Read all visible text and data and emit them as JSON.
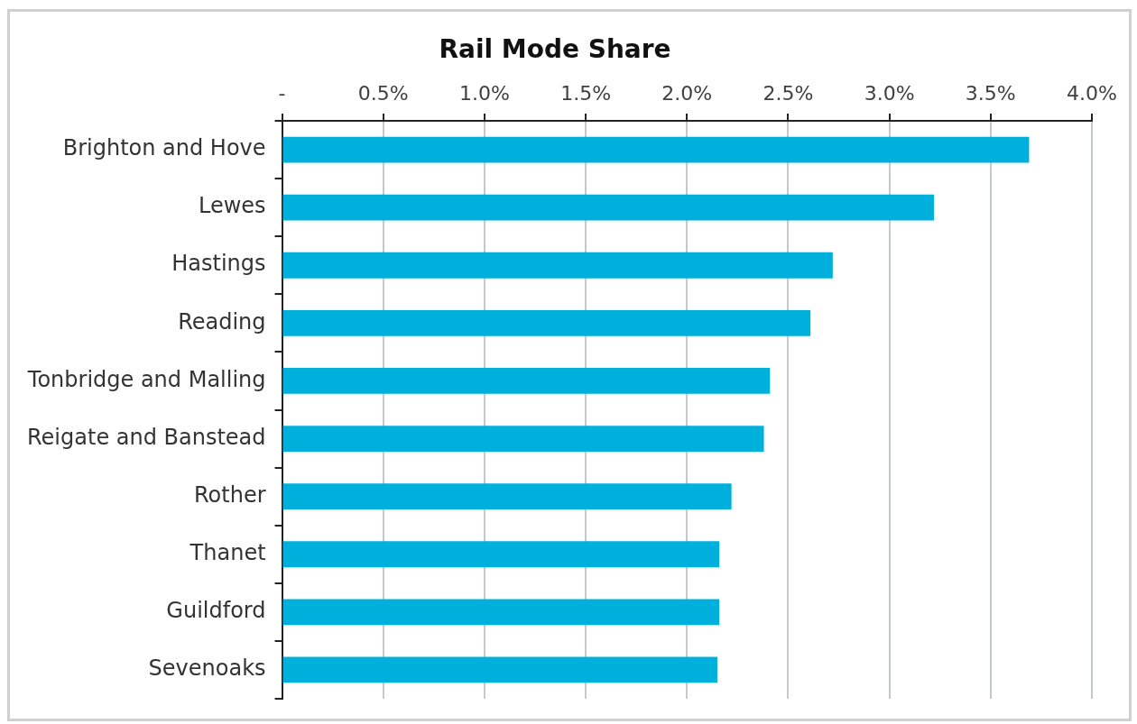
{
  "chart_data": {
    "type": "bar",
    "orientation": "horizontal",
    "title": "Rail Mode Share",
    "categories": [
      "Brighton and Hove",
      "Lewes",
      "Hastings",
      "Reading",
      "Tonbridge and Malling",
      "Reigate and Banstead",
      "Rother",
      "Thanet",
      "Guildford",
      "Sevenoaks"
    ],
    "values": [
      3.69,
      3.22,
      2.72,
      2.61,
      2.41,
      2.38,
      2.22,
      2.16,
      2.16,
      2.15
    ],
    "color": "#00b0dc",
    "xlim": [
      0,
      4
    ],
    "xticks": [
      {
        "value": 0,
        "label": "-"
      },
      {
        "value": 0.5,
        "label": "0.5%"
      },
      {
        "value": 1,
        "label": "1.0%"
      },
      {
        "value": 1.5,
        "label": "1.5%"
      },
      {
        "value": 2,
        "label": "2.0%"
      },
      {
        "value": 2.5,
        "label": "2.5%"
      },
      {
        "value": 3,
        "label": "3.0%"
      },
      {
        "value": 3.5,
        "label": "3.5%"
      },
      {
        "value": 4,
        "label": "4.0%"
      }
    ],
    "grid": "x"
  }
}
